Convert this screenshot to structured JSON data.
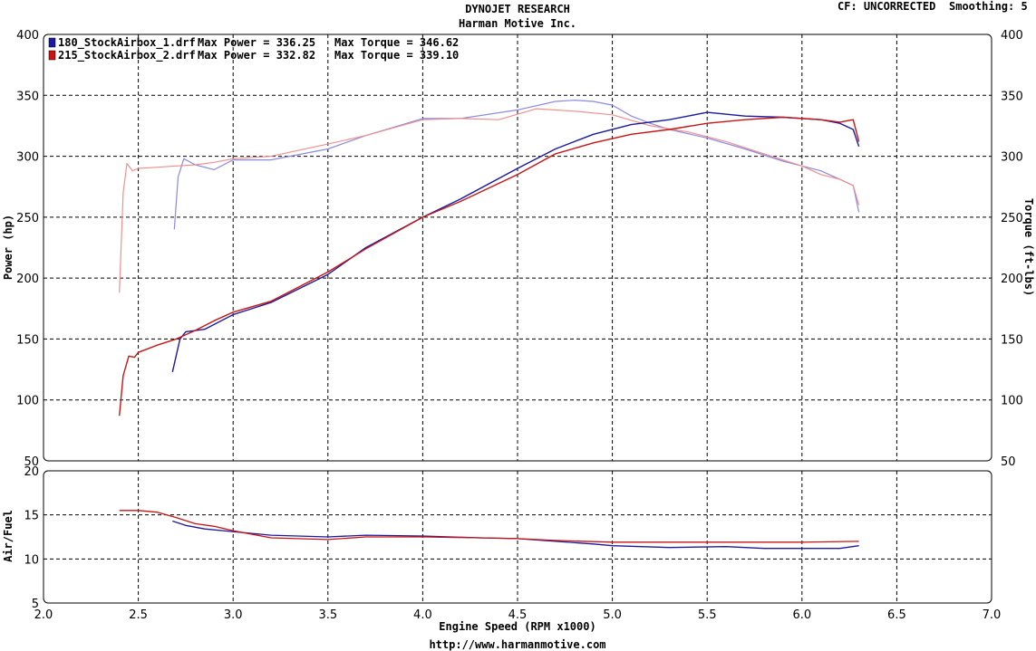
{
  "header": {
    "title": "DYNOJET RESEARCH",
    "subtitle": "Harman Motive Inc.",
    "cf_label": "CF: UNCORRECTED",
    "smoothing_label": "Smoothing: 5"
  },
  "footer": {
    "url": "http://www.harmanmotive.com"
  },
  "colors": {
    "run1": "#1a1aa0",
    "run2": "#c81414",
    "run1_torque": "#8a8ae0",
    "run2_torque": "#ee9090",
    "grid": "#000000"
  },
  "chart_data": [
    {
      "type": "line",
      "xlabel": "Engine Speed (RPM x1000)",
      "ylabel": "Power (hp)",
      "y2label": "Torque (ft-lbs)",
      "xlim": [
        2.0,
        7.0
      ],
      "ylim": [
        50,
        400
      ],
      "y2lim": [
        50,
        400
      ],
      "x_ticks": [
        "2.0",
        "2.5",
        "3.0",
        "3.5",
        "4.0",
        "4.5",
        "5.0",
        "5.5",
        "6.0",
        "6.5",
        "7.0"
      ],
      "y_ticks": [
        "50",
        "100",
        "150",
        "200",
        "250",
        "300",
        "350",
        "400"
      ],
      "y2_ticks": [
        "50",
        "100",
        "150",
        "200",
        "250",
        "300",
        "350",
        "400"
      ],
      "grid": true,
      "legend": [
        {
          "file": "180_StockAirbox_1.drf",
          "power_label": "Max Power = 336.25",
          "torque_label": "Max Torque = 346.62",
          "color": "#1a1aa0"
        },
        {
          "file": "215_StockAirbox_2.drf",
          "power_label": "Max Power = 332.82",
          "torque_label": "Max Torque = 339.10",
          "color": "#c81414"
        }
      ],
      "series": [
        {
          "name": "180_StockAirbox_1.drf",
          "measure": "power",
          "x": [
            2.68,
            2.72,
            2.75,
            2.85,
            3.0,
            3.2,
            3.5,
            3.7,
            4.0,
            4.2,
            4.5,
            4.7,
            4.9,
            5.1,
            5.3,
            5.5,
            5.7,
            5.9,
            6.1,
            6.2,
            6.27,
            6.3
          ],
          "y": [
            123,
            150,
            156,
            158,
            170,
            180,
            203,
            225,
            250,
            265,
            290,
            306,
            318,
            326,
            330,
            336,
            333,
            332,
            330,
            327,
            322,
            308
          ]
        },
        {
          "name": "215_StockAirbox_2.drf",
          "measure": "power",
          "x": [
            2.4,
            2.42,
            2.45,
            2.48,
            2.5,
            2.6,
            2.7,
            2.8,
            2.9,
            3.0,
            3.2,
            3.5,
            3.7,
            4.0,
            4.2,
            4.5,
            4.7,
            4.9,
            5.1,
            5.3,
            5.5,
            5.7,
            5.9,
            6.1,
            6.2,
            6.27,
            6.3
          ],
          "y": [
            87,
            120,
            136,
            135,
            139,
            145,
            150,
            157,
            165,
            172,
            181,
            205,
            224,
            250,
            263,
            285,
            302,
            311,
            318,
            322,
            327,
            330,
            332,
            330,
            328,
            330,
            312
          ]
        },
        {
          "name": "180_StockAirbox_1.drf",
          "measure": "torque",
          "x": [
            2.69,
            2.71,
            2.74,
            2.8,
            2.9,
            3.0,
            3.2,
            3.5,
            3.7,
            4.0,
            4.2,
            4.5,
            4.7,
            4.8,
            4.9,
            5.0,
            5.1,
            5.2,
            5.3,
            5.5,
            5.7,
            5.9,
            6.1,
            6.2,
            6.27,
            6.3
          ],
          "y": [
            240,
            283,
            298,
            293,
            289,
            297,
            297,
            306,
            317,
            331,
            331,
            338,
            345,
            346,
            345,
            342,
            333,
            327,
            322,
            315,
            306,
            296,
            288,
            281,
            276,
            254
          ]
        },
        {
          "name": "215_StockAirbox_2.drf",
          "measure": "torque",
          "x": [
            2.4,
            2.42,
            2.44,
            2.47,
            2.5,
            2.6,
            2.7,
            2.8,
            2.9,
            3.0,
            3.2,
            3.5,
            3.7,
            4.0,
            4.2,
            4.4,
            4.6,
            4.8,
            5.0,
            5.2,
            5.4,
            5.6,
            5.8,
            6.0,
            6.1,
            6.2,
            6.27,
            6.3
          ],
          "y": [
            188,
            270,
            294,
            288,
            290,
            291,
            292,
            293,
            295,
            298,
            300,
            310,
            317,
            330,
            331,
            330,
            339,
            337,
            334,
            325,
            320,
            312,
            302,
            292,
            285,
            281,
            276,
            260
          ]
        }
      ]
    },
    {
      "type": "line",
      "xlabel": "Engine Speed (RPM x1000)",
      "ylabel": "Air/Fuel",
      "xlim": [
        2.0,
        7.0
      ],
      "ylim": [
        5,
        20
      ],
      "y_ticks": [
        "5",
        "10",
        "15",
        "20"
      ],
      "grid": true,
      "series": [
        {
          "name": "180_StockAirbox_1.drf",
          "x": [
            2.68,
            2.75,
            2.85,
            3.0,
            3.2,
            3.5,
            3.7,
            4.0,
            4.3,
            4.5,
            4.7,
            4.9,
            5.0,
            5.3,
            5.6,
            5.8,
            6.0,
            6.2,
            6.3
          ],
          "y": [
            14.3,
            13.8,
            13.4,
            13.1,
            12.7,
            12.5,
            12.7,
            12.6,
            12.4,
            12.3,
            12.0,
            11.7,
            11.5,
            11.3,
            11.4,
            11.2,
            11.2,
            11.2,
            11.5
          ]
        },
        {
          "name": "215_StockAirbox_2.drf",
          "x": [
            2.4,
            2.5,
            2.6,
            2.7,
            2.8,
            2.9,
            3.0,
            3.2,
            3.5,
            3.7,
            4.0,
            4.3,
            4.5,
            4.7,
            5.0,
            5.3,
            5.6,
            6.0,
            6.3
          ],
          "y": [
            15.5,
            15.5,
            15.3,
            14.7,
            14.0,
            13.7,
            13.2,
            12.4,
            12.2,
            12.5,
            12.5,
            12.4,
            12.3,
            12.1,
            11.9,
            11.9,
            11.9,
            11.9,
            12.0
          ]
        }
      ]
    }
  ]
}
